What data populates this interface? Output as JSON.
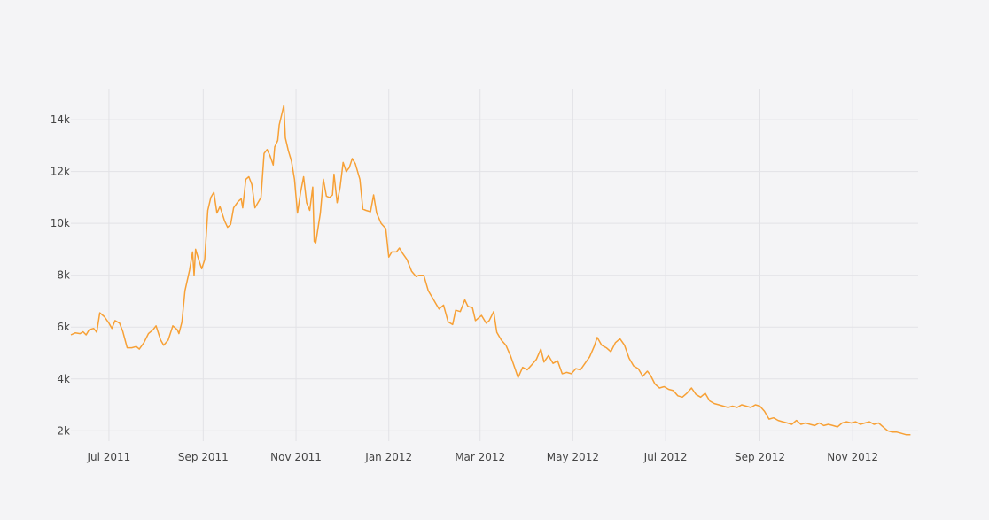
{
  "chart_data": {
    "type": "line",
    "title": "",
    "xlabel": "",
    "ylabel": "",
    "x_tick_labels": [
      "Jul 2011",
      "Sep 2011",
      "Nov 2011",
      "Jan 2012",
      "Mar 2012",
      "May 2012",
      "Jul 2012",
      "Sep 2012",
      "Nov 2012"
    ],
    "y_tick_labels": [
      "2k",
      "4k",
      "6k",
      "8k",
      "10k",
      "12k",
      "14k"
    ],
    "xlim": [
      "2011-06-06",
      "2012-12-14"
    ],
    "ylim": [
      1600,
      15200
    ],
    "grid": true,
    "line_color": "#f7a035",
    "series": [
      {
        "points": [
          [
            "2011-06-06",
            5700
          ],
          [
            "2011-06-09",
            5780
          ],
          [
            "2011-06-12",
            5750
          ],
          [
            "2011-06-14",
            5820
          ],
          [
            "2011-06-16",
            5700
          ],
          [
            "2011-06-18",
            5900
          ],
          [
            "2011-06-21",
            5950
          ],
          [
            "2011-06-23",
            5800
          ],
          [
            "2011-06-25",
            6550
          ],
          [
            "2011-06-28",
            6400
          ],
          [
            "2011-07-01",
            6150
          ],
          [
            "2011-07-03",
            5950
          ],
          [
            "2011-07-05",
            6250
          ],
          [
            "2011-07-08",
            6150
          ],
          [
            "2011-07-10",
            5850
          ],
          [
            "2011-07-13",
            5200
          ],
          [
            "2011-07-16",
            5200
          ],
          [
            "2011-07-19",
            5250
          ],
          [
            "2011-07-21",
            5150
          ],
          [
            "2011-07-24",
            5400
          ],
          [
            "2011-07-27",
            5750
          ],
          [
            "2011-07-30",
            5900
          ],
          [
            "2011-08-01",
            6050
          ],
          [
            "2011-08-04",
            5500
          ],
          [
            "2011-08-06",
            5300
          ],
          [
            "2011-08-09",
            5500
          ],
          [
            "2011-08-12",
            6050
          ],
          [
            "2011-08-15",
            5900
          ],
          [
            "2011-08-16",
            5750
          ],
          [
            "2011-08-18",
            6200
          ],
          [
            "2011-08-20",
            7400
          ],
          [
            "2011-08-23",
            8200
          ],
          [
            "2011-08-25",
            8900
          ],
          [
            "2011-08-26",
            8000
          ],
          [
            "2011-08-27",
            9000
          ],
          [
            "2011-08-29",
            8600
          ],
          [
            "2011-08-31",
            8250
          ],
          [
            "2011-09-02",
            8600
          ],
          [
            "2011-09-04",
            10500
          ],
          [
            "2011-09-06",
            11000
          ],
          [
            "2011-09-08",
            11200
          ],
          [
            "2011-09-10",
            10400
          ],
          [
            "2011-09-12",
            10650
          ],
          [
            "2011-09-15",
            10100
          ],
          [
            "2011-09-17",
            9850
          ],
          [
            "2011-09-19",
            9950
          ],
          [
            "2011-09-21",
            10600
          ],
          [
            "2011-09-24",
            10850
          ],
          [
            "2011-09-26",
            10950
          ],
          [
            "2011-09-27",
            10600
          ],
          [
            "2011-09-29",
            11700
          ],
          [
            "2011-10-01",
            11800
          ],
          [
            "2011-10-03",
            11500
          ],
          [
            "2011-10-05",
            10600
          ],
          [
            "2011-10-07",
            10800
          ],
          [
            "2011-10-09",
            11000
          ],
          [
            "2011-10-11",
            12700
          ],
          [
            "2011-10-13",
            12850
          ],
          [
            "2011-10-15",
            12600
          ],
          [
            "2011-10-17",
            12250
          ],
          [
            "2011-10-18",
            12950
          ],
          [
            "2011-10-20",
            13200
          ],
          [
            "2011-10-21",
            13800
          ],
          [
            "2011-10-24",
            14550
          ],
          [
            "2011-10-25",
            13300
          ],
          [
            "2011-10-27",
            12800
          ],
          [
            "2011-10-29",
            12400
          ],
          [
            "2011-10-31",
            11700
          ],
          [
            "2011-11-02",
            10400
          ],
          [
            "2011-11-04",
            11200
          ],
          [
            "2011-11-06",
            11800
          ],
          [
            "2011-11-08",
            10800
          ],
          [
            "2011-11-10",
            10500
          ],
          [
            "2011-11-12",
            11400
          ],
          [
            "2011-11-13",
            9300
          ],
          [
            "2011-11-14",
            9250
          ],
          [
            "2011-11-17",
            10400
          ],
          [
            "2011-11-19",
            11700
          ],
          [
            "2011-11-21",
            11050
          ],
          [
            "2011-11-23",
            11000
          ],
          [
            "2011-11-25",
            11100
          ],
          [
            "2011-11-26",
            11900
          ],
          [
            "2011-11-28",
            10800
          ],
          [
            "2011-11-30",
            11400
          ],
          [
            "2011-12-02",
            12350
          ],
          [
            "2011-12-04",
            12000
          ],
          [
            "2011-12-06",
            12150
          ],
          [
            "2011-12-08",
            12500
          ],
          [
            "2011-12-10",
            12300
          ],
          [
            "2011-12-13",
            11700
          ],
          [
            "2011-12-15",
            10550
          ],
          [
            "2011-12-17",
            10500
          ],
          [
            "2011-12-20",
            10450
          ],
          [
            "2011-12-22",
            11100
          ],
          [
            "2011-12-24",
            10400
          ],
          [
            "2011-12-27",
            10000
          ],
          [
            "2011-12-30",
            9800
          ],
          [
            "2012-01-01",
            8700
          ],
          [
            "2012-01-03",
            8900
          ],
          [
            "2012-01-06",
            8900
          ],
          [
            "2012-01-08",
            9050
          ],
          [
            "2012-01-10",
            8850
          ],
          [
            "2012-01-13",
            8600
          ],
          [
            "2012-01-16",
            8150
          ],
          [
            "2012-01-19",
            7950
          ],
          [
            "2012-01-21",
            8000
          ],
          [
            "2012-01-24",
            8000
          ],
          [
            "2012-01-27",
            7400
          ],
          [
            "2012-01-30",
            7100
          ],
          [
            "2012-02-01",
            6900
          ],
          [
            "2012-02-03",
            6700
          ],
          [
            "2012-02-06",
            6850
          ],
          [
            "2012-02-09",
            6200
          ],
          [
            "2012-02-12",
            6100
          ],
          [
            "2012-02-14",
            6650
          ],
          [
            "2012-02-17",
            6600
          ],
          [
            "2012-02-20",
            7050
          ],
          [
            "2012-02-22",
            6800
          ],
          [
            "2012-02-25",
            6750
          ],
          [
            "2012-02-27",
            6250
          ],
          [
            "2012-03-02",
            6450
          ],
          [
            "2012-03-05",
            6150
          ],
          [
            "2012-03-07",
            6250
          ],
          [
            "2012-03-10",
            6600
          ],
          [
            "2012-03-12",
            5800
          ],
          [
            "2012-03-15",
            5500
          ],
          [
            "2012-03-18",
            5300
          ],
          [
            "2012-03-21",
            4900
          ],
          [
            "2012-03-24",
            4400
          ],
          [
            "2012-03-26",
            4050
          ],
          [
            "2012-03-29",
            4450
          ],
          [
            "2012-04-01",
            4350
          ],
          [
            "2012-04-04",
            4550
          ],
          [
            "2012-04-07",
            4750
          ],
          [
            "2012-04-10",
            5150
          ],
          [
            "2012-04-12",
            4650
          ],
          [
            "2012-04-15",
            4900
          ],
          [
            "2012-04-18",
            4600
          ],
          [
            "2012-04-21",
            4700
          ],
          [
            "2012-04-24",
            4200
          ],
          [
            "2012-04-27",
            4250
          ],
          [
            "2012-04-30",
            4200
          ],
          [
            "2012-05-03",
            4400
          ],
          [
            "2012-05-06",
            4350
          ],
          [
            "2012-05-09",
            4600
          ],
          [
            "2012-05-12",
            4850
          ],
          [
            "2012-05-15",
            5250
          ],
          [
            "2012-05-17",
            5600
          ],
          [
            "2012-05-20",
            5300
          ],
          [
            "2012-05-23",
            5200
          ],
          [
            "2012-05-26",
            5050
          ],
          [
            "2012-05-29",
            5400
          ],
          [
            "2012-06-01",
            5550
          ],
          [
            "2012-06-04",
            5300
          ],
          [
            "2012-06-07",
            4800
          ],
          [
            "2012-06-10",
            4500
          ],
          [
            "2012-06-13",
            4400
          ],
          [
            "2012-06-16",
            4100
          ],
          [
            "2012-06-19",
            4300
          ],
          [
            "2012-06-21",
            4150
          ],
          [
            "2012-06-24",
            3800
          ],
          [
            "2012-06-27",
            3650
          ],
          [
            "2012-06-30",
            3700
          ],
          [
            "2012-07-03",
            3600
          ],
          [
            "2012-07-06",
            3550
          ],
          [
            "2012-07-09",
            3350
          ],
          [
            "2012-07-12",
            3300
          ],
          [
            "2012-07-15",
            3450
          ],
          [
            "2012-07-18",
            3650
          ],
          [
            "2012-07-21",
            3400
          ],
          [
            "2012-07-24",
            3300
          ],
          [
            "2012-07-27",
            3450
          ],
          [
            "2012-07-30",
            3150
          ],
          [
            "2012-08-02",
            3050
          ],
          [
            "2012-08-05",
            3000
          ],
          [
            "2012-08-08",
            2950
          ],
          [
            "2012-08-11",
            2900
          ],
          [
            "2012-08-14",
            2950
          ],
          [
            "2012-08-17",
            2900
          ],
          [
            "2012-08-20",
            3000
          ],
          [
            "2012-08-23",
            2950
          ],
          [
            "2012-08-26",
            2900
          ],
          [
            "2012-08-29",
            3000
          ],
          [
            "2012-09-01",
            2950
          ],
          [
            "2012-09-04",
            2750
          ],
          [
            "2012-09-07",
            2450
          ],
          [
            "2012-09-10",
            2500
          ],
          [
            "2012-09-13",
            2400
          ],
          [
            "2012-09-16",
            2350
          ],
          [
            "2012-09-19",
            2300
          ],
          [
            "2012-09-22",
            2250
          ],
          [
            "2012-09-25",
            2400
          ],
          [
            "2012-09-28",
            2250
          ],
          [
            "2012-10-01",
            2300
          ],
          [
            "2012-10-04",
            2250
          ],
          [
            "2012-10-07",
            2200
          ],
          [
            "2012-10-10",
            2300
          ],
          [
            "2012-10-13",
            2200
          ],
          [
            "2012-10-16",
            2250
          ],
          [
            "2012-10-19",
            2200
          ],
          [
            "2012-10-22",
            2150
          ],
          [
            "2012-10-25",
            2300
          ],
          [
            "2012-10-28",
            2350
          ],
          [
            "2012-10-31",
            2300
          ],
          [
            "2012-11-03",
            2350
          ],
          [
            "2012-11-06",
            2250
          ],
          [
            "2012-11-09",
            2300
          ],
          [
            "2012-11-12",
            2350
          ],
          [
            "2012-11-15",
            2250
          ],
          [
            "2012-11-18",
            2300
          ],
          [
            "2012-11-21",
            2150
          ],
          [
            "2012-11-24",
            2000
          ],
          [
            "2012-11-27",
            1950
          ],
          [
            "2012-11-30",
            1950
          ],
          [
            "2012-12-03",
            1900
          ],
          [
            "2012-12-06",
            1850
          ],
          [
            "2012-12-09",
            1850
          ]
        ]
      }
    ]
  }
}
